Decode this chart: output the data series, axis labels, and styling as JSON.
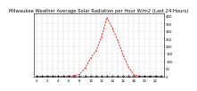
{
  "title": "Milwaukee Weather Average Solar Radiation per Hour W/m2 (Last 24 Hours)",
  "hours": [
    0,
    1,
    2,
    3,
    4,
    5,
    6,
    7,
    8,
    9,
    10,
    11,
    12,
    13,
    14,
    15,
    16,
    17,
    18,
    19,
    20,
    21,
    22,
    23
  ],
  "solar": [
    0,
    0,
    0,
    0,
    0,
    0,
    2,
    4,
    15,
    55,
    120,
    170,
    260,
    390,
    320,
    240,
    140,
    60,
    10,
    0,
    0,
    0,
    0,
    0
  ],
  "avg_line": [
    3,
    3,
    3,
    3,
    3,
    3,
    3,
    3,
    3,
    3,
    3,
    3,
    3,
    3,
    3,
    3,
    3,
    3,
    3,
    3,
    3,
    3,
    3,
    3
  ],
  "line_color": "#ff0000",
  "avg_color": "#000000",
  "bg_color": "#ffffff",
  "grid_color": "#999999",
  "ylim": [
    0,
    420
  ],
  "yticks": [
    0,
    50,
    100,
    150,
    200,
    250,
    300,
    350,
    400
  ],
  "title_fontsize": 3.8,
  "tick_fontsize": 2.8
}
